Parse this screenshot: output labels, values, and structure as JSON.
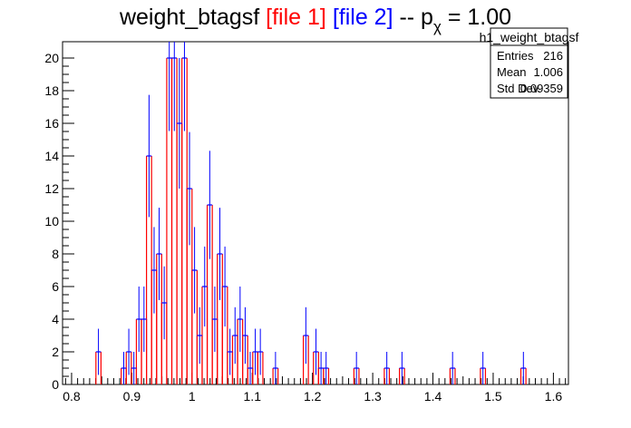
{
  "chart_data": {
    "type": "bar",
    "title_parts": [
      {
        "text": "weight_btagsf ",
        "color": "#000000"
      },
      {
        "text": "[file 1]",
        "color": "#ff0000"
      },
      {
        "text": " ",
        "color": "#000000"
      },
      {
        "text": "[file 2]",
        "color": "#0000ff"
      },
      {
        "text": " -- p",
        "color": "#000000"
      },
      {
        "text": "χ",
        "color": "#000000",
        "subscript": true
      },
      {
        "text": " = 1.00",
        "color": "#000000"
      }
    ],
    "xlim": [
      0.785,
      1.625
    ],
    "ylim": [
      0,
      21
    ],
    "xticks": [
      0.8,
      0.9,
      1.0,
      1.1,
      1.2,
      1.3,
      1.4,
      1.5,
      1.6
    ],
    "xtick_labels": [
      "0.8",
      "0.9",
      "1",
      "1.1",
      "1.2",
      "1.3",
      "1.4",
      "1.5",
      "1.6"
    ],
    "yticks": [
      0,
      2,
      4,
      6,
      8,
      10,
      12,
      14,
      16,
      18,
      20
    ],
    "ytick_labels": [
      "0",
      "2",
      "4",
      "6",
      "8",
      "10",
      "12",
      "14",
      "16",
      "18",
      "20"
    ],
    "bin_width": 0.0084,
    "series": [
      {
        "name": "file 1",
        "color": "#ff0000",
        "style": "step",
        "bins": [
          {
            "x": 0.8446,
            "y": 2
          },
          {
            "x": 0.8866,
            "y": 1
          },
          {
            "x": 0.895,
            "y": 2
          },
          {
            "x": 0.9034,
            "y": 1
          },
          {
            "x": 0.9118,
            "y": 4
          },
          {
            "x": 0.9202,
            "y": 4
          },
          {
            "x": 0.9286,
            "y": 14
          },
          {
            "x": 0.937,
            "y": 7
          },
          {
            "x": 0.9454,
            "y": 8
          },
          {
            "x": 0.9538,
            "y": 5
          },
          {
            "x": 0.9622,
            "y": 20
          },
          {
            "x": 0.9706,
            "y": 20
          },
          {
            "x": 0.979,
            "y": 16
          },
          {
            "x": 0.9874,
            "y": 20
          },
          {
            "x": 0.9958,
            "y": 12
          },
          {
            "x": 1.0042,
            "y": 7
          },
          {
            "x": 1.0126,
            "y": 3
          },
          {
            "x": 1.021,
            "y": 6
          },
          {
            "x": 1.0294,
            "y": 11
          },
          {
            "x": 1.0378,
            "y": 4
          },
          {
            "x": 1.0462,
            "y": 8
          },
          {
            "x": 1.0546,
            "y": 6
          },
          {
            "x": 1.063,
            "y": 2
          },
          {
            "x": 1.0714,
            "y": 3
          },
          {
            "x": 1.0798,
            "y": 4
          },
          {
            "x": 1.0882,
            "y": 3
          },
          {
            "x": 1.0966,
            "y": 1
          },
          {
            "x": 1.105,
            "y": 2
          },
          {
            "x": 1.1134,
            "y": 2
          },
          {
            "x": 1.1386,
            "y": 1
          },
          {
            "x": 1.189,
            "y": 3
          },
          {
            "x": 1.2058,
            "y": 2
          },
          {
            "x": 1.2142,
            "y": 1
          },
          {
            "x": 1.2226,
            "y": 1
          },
          {
            "x": 1.273,
            "y": 1
          },
          {
            "x": 1.3234,
            "y": 1
          },
          {
            "x": 1.3486,
            "y": 1
          },
          {
            "x": 1.4326,
            "y": 1
          },
          {
            "x": 1.483,
            "y": 1
          },
          {
            "x": 1.5502,
            "y": 1
          }
        ]
      },
      {
        "name": "file 2",
        "color": "#0000ff",
        "style": "step+errors",
        "bins": [
          {
            "x": 0.8446,
            "y": 2
          },
          {
            "x": 0.8866,
            "y": 1
          },
          {
            "x": 0.895,
            "y": 2
          },
          {
            "x": 0.9034,
            "y": 1
          },
          {
            "x": 0.9118,
            "y": 4
          },
          {
            "x": 0.9202,
            "y": 4
          },
          {
            "x": 0.9286,
            "y": 14
          },
          {
            "x": 0.937,
            "y": 7
          },
          {
            "x": 0.9454,
            "y": 8
          },
          {
            "x": 0.9538,
            "y": 5
          },
          {
            "x": 0.9622,
            "y": 20
          },
          {
            "x": 0.9706,
            "y": 20
          },
          {
            "x": 0.979,
            "y": 16
          },
          {
            "x": 0.9874,
            "y": 20
          },
          {
            "x": 0.9958,
            "y": 12
          },
          {
            "x": 1.0042,
            "y": 7
          },
          {
            "x": 1.0126,
            "y": 3
          },
          {
            "x": 1.021,
            "y": 6
          },
          {
            "x": 1.0294,
            "y": 11
          },
          {
            "x": 1.0378,
            "y": 4
          },
          {
            "x": 1.0462,
            "y": 8
          },
          {
            "x": 1.0546,
            "y": 6
          },
          {
            "x": 1.063,
            "y": 2
          },
          {
            "x": 1.0714,
            "y": 3
          },
          {
            "x": 1.0798,
            "y": 4
          },
          {
            "x": 1.0882,
            "y": 3
          },
          {
            "x": 1.0966,
            "y": 1
          },
          {
            "x": 1.105,
            "y": 2
          },
          {
            "x": 1.1134,
            "y": 2
          },
          {
            "x": 1.1386,
            "y": 1
          },
          {
            "x": 1.189,
            "y": 3
          },
          {
            "x": 1.2058,
            "y": 2
          },
          {
            "x": 1.2142,
            "y": 1
          },
          {
            "x": 1.2226,
            "y": 1
          },
          {
            "x": 1.273,
            "y": 1
          },
          {
            "x": 1.3234,
            "y": 1
          },
          {
            "x": 1.3486,
            "y": 1
          },
          {
            "x": 1.4326,
            "y": 1
          },
          {
            "x": 1.483,
            "y": 1
          },
          {
            "x": 1.5502,
            "y": 1
          }
        ]
      }
    ],
    "stats_box": {
      "title": "h1_weight_btagsf",
      "rows": [
        {
          "label": "Entries",
          "value": "216"
        },
        {
          "label": "Mean",
          "value": "1.006"
        },
        {
          "label": "Std Dev",
          "value": "0.09359"
        }
      ]
    }
  }
}
